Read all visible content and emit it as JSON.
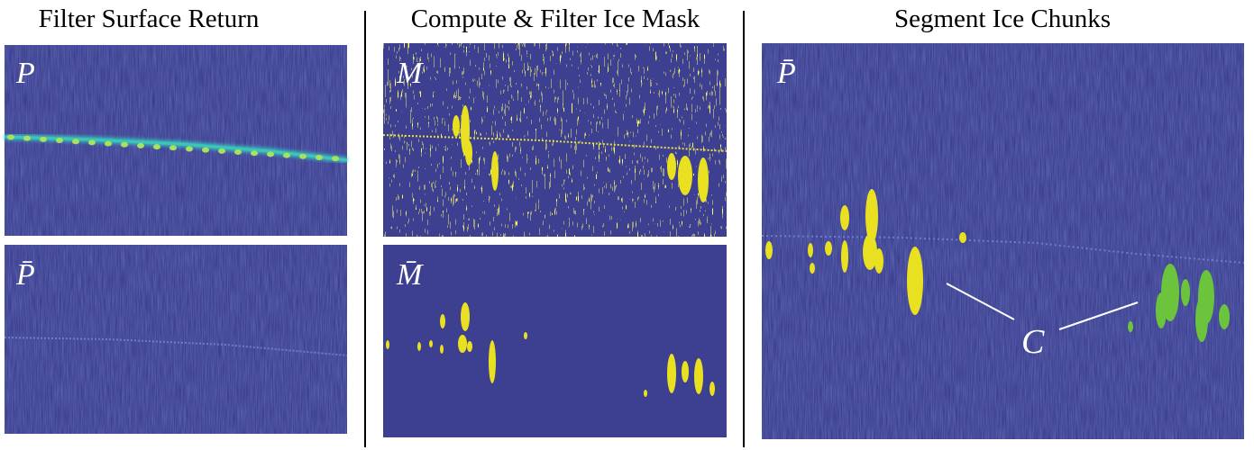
{
  "columns": [
    {
      "title": "Filter Surface Return",
      "panels": [
        {
          "label": "P"
        },
        {
          "label": "P̄"
        }
      ]
    },
    {
      "title": "Compute & Filter Ice Mask",
      "panels": [
        {
          "label": "M"
        },
        {
          "label": "M̄"
        }
      ]
    },
    {
      "title": "Segment Ice Chunks",
      "panels": [
        {
          "label": "P̄"
        }
      ]
    }
  ],
  "annotation": {
    "label": "C"
  }
}
